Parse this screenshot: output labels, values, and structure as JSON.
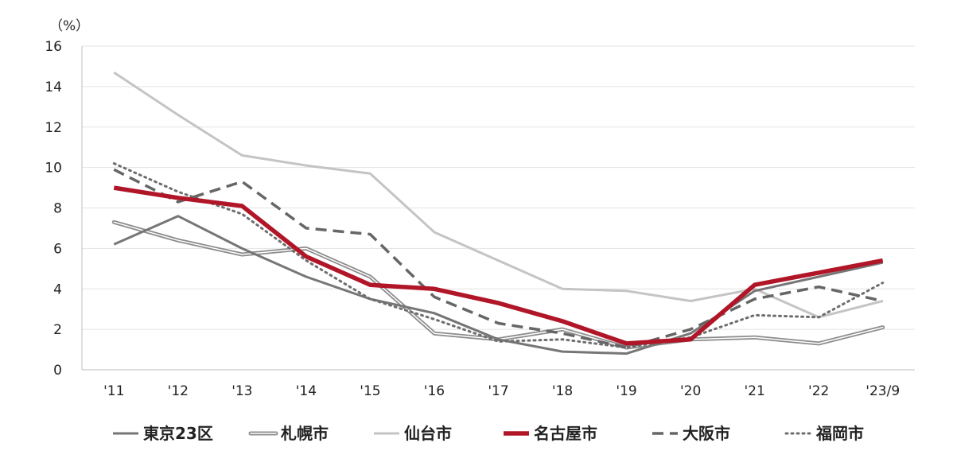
{
  "chart_data": {
    "type": "line",
    "unit_label": "（%）",
    "categories": [
      "'11",
      "'12",
      "'13",
      "'14",
      "'15",
      "'16",
      "'17",
      "'18",
      "'19",
      "'20",
      "'21",
      "'22",
      "'23/9"
    ],
    "ylim": [
      0,
      16
    ],
    "yticks": [
      0,
      2,
      4,
      6,
      8,
      10,
      12,
      14,
      16
    ],
    "grid": true,
    "legend_position": "bottom",
    "series": [
      {
        "name": "東京23区",
        "values": [
          6.2,
          7.6,
          6.0,
          4.6,
          3.5,
          2.8,
          1.5,
          0.9,
          0.8,
          1.8,
          3.9,
          4.6,
          5.3
        ],
        "color": "#767676",
        "style": "solid"
      },
      {
        "name": "札幌市",
        "values": [
          7.3,
          6.4,
          5.7,
          6.0,
          4.6,
          1.8,
          1.5,
          2.0,
          1.1,
          1.5,
          1.6,
          1.3,
          2.1
        ],
        "color": "#8c8c8c",
        "style": "double"
      },
      {
        "name": "仙台市",
        "values": [
          14.7,
          12.6,
          10.6,
          10.1,
          9.7,
          6.8,
          5.4,
          4.0,
          3.9,
          3.4,
          4.0,
          2.6,
          3.4
        ],
        "color": "#c4c4c4",
        "style": "solid"
      },
      {
        "name": "名古屋市",
        "values": [
          9.0,
          8.5,
          8.1,
          5.6,
          4.2,
          4.0,
          3.3,
          2.4,
          1.3,
          1.5,
          4.2,
          4.8,
          5.4
        ],
        "color": "#b01628",
        "style": "solid-bold"
      },
      {
        "name": "大阪市",
        "values": [
          9.9,
          8.3,
          9.3,
          7.0,
          6.7,
          3.6,
          2.3,
          1.8,
          1.1,
          2.0,
          3.5,
          4.1,
          3.4
        ],
        "color": "#666666",
        "style": "dashed"
      },
      {
        "name": "福岡市",
        "values": [
          10.2,
          8.8,
          7.7,
          5.4,
          3.5,
          2.5,
          1.4,
          1.5,
          1.1,
          1.6,
          2.7,
          2.6,
          4.3
        ],
        "color": "#6e6e6e",
        "style": "dotted"
      }
    ]
  }
}
